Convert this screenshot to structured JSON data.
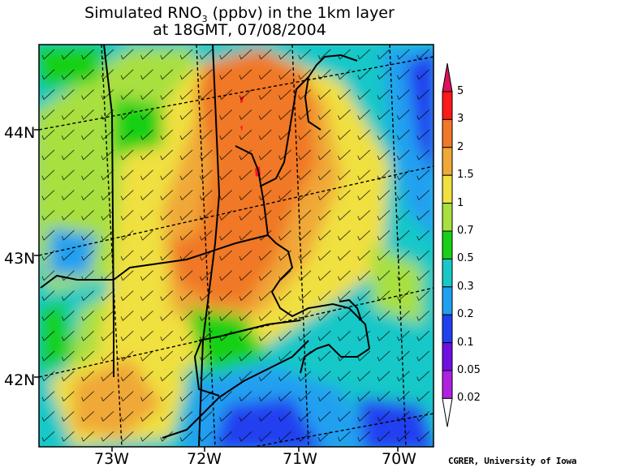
{
  "title": {
    "line1_prefix": "Simulated RNO",
    "line1_sub": "3",
    "line1_suffix": " (ppbv) in the 1km layer",
    "line2": "at 18GMT, 07/08/2004"
  },
  "axes": {
    "lat_labels": [
      "44N",
      "43N",
      "42N"
    ],
    "lon_labels": [
      "73W",
      "72W",
      "71W",
      "70W"
    ]
  },
  "colorbar": {
    "levels": [
      "5",
      "3",
      "2",
      "1.5",
      "1",
      "0.7",
      "0.5",
      "0.3",
      "0.2",
      "0.1",
      "0.05",
      "0.02"
    ],
    "colors": [
      "#e0105a",
      "#ff1a1a",
      "#f07828",
      "#f0a838",
      "#f0e040",
      "#a8e040",
      "#18d018",
      "#18c8c8",
      "#20a0f0",
      "#2040f0",
      "#7010e0",
      "#b020e0",
      "#ffffff"
    ]
  },
  "credit": "CGRER, University of Iowa"
}
